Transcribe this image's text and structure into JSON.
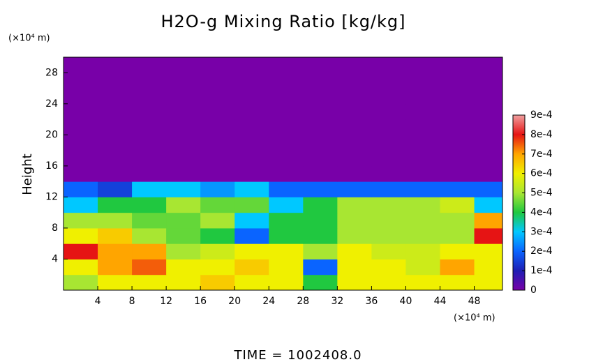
{
  "chart_data": {
    "type": "heatmap",
    "title": "H2O-g Mixing Ratio [kg/kg]",
    "ylabel": "Height",
    "y_unit": "(×10⁴ m)",
    "x_unit": "(×10⁴ m)",
    "footer": "TIME = 1002408.0",
    "xlim": [
      0,
      51.3
    ],
    "ylim": [
      0,
      30
    ],
    "xticks": [
      4,
      8,
      12,
      16,
      20,
      24,
      28,
      32,
      36,
      40,
      44,
      48
    ],
    "yticks": [
      4,
      8,
      12,
      16,
      20,
      24,
      28
    ],
    "x": [
      2,
      6,
      10,
      14,
      18,
      22,
      26,
      30,
      34,
      38,
      42,
      46,
      50
    ],
    "y": [
      1,
      3,
      5,
      7,
      9,
      11,
      13,
      15,
      17,
      19,
      21,
      23,
      25,
      27,
      29
    ],
    "z": [
      [
        0.0005,
        0.0006,
        0.0006,
        0.0006,
        0.00065,
        0.0006,
        0.0006,
        0.0004,
        0.0006,
        0.0006,
        0.0006,
        0.0006,
        0.0006
      ],
      [
        0.0006,
        0.0007,
        0.00075,
        0.0006,
        0.0006,
        0.00065,
        0.0006,
        0.0002,
        0.0006,
        0.0006,
        0.00055,
        0.0007,
        0.0006
      ],
      [
        0.0008,
        0.0007,
        0.0007,
        0.0005,
        0.00055,
        0.0006,
        0.0006,
        0.0005,
        0.0006,
        0.00055,
        0.00055,
        0.0006,
        0.0006
      ],
      [
        0.0006,
        0.00065,
        0.0005,
        0.00045,
        0.0004,
        0.0002,
        0.0004,
        0.0004,
        0.0005,
        0.0005,
        0.0005,
        0.0005,
        0.0008
      ],
      [
        0.0005,
        0.0005,
        0.00045,
        0.00045,
        0.0005,
        0.0003,
        0.0004,
        0.0004,
        0.0005,
        0.0005,
        0.0005,
        0.0005,
        0.0007
      ],
      [
        0.0003,
        0.0004,
        0.0004,
        0.0005,
        0.00045,
        0.00045,
        0.0003,
        0.0004,
        0.0005,
        0.0005,
        0.0005,
        0.00055,
        0.0003
      ],
      [
        0.0002,
        0.00015,
        0.0003,
        0.0003,
        0.00025,
        0.0003,
        0.0002,
        0.0002,
        0.0002,
        0.0002,
        0.0002,
        0.0002,
        0.0002
      ],
      [
        0,
        0,
        0,
        0,
        0,
        0,
        0,
        0,
        0,
        0,
        0,
        0,
        0
      ],
      [
        0,
        0,
        0,
        0,
        0,
        0,
        0,
        0,
        0,
        0,
        0,
        0,
        0
      ],
      [
        0,
        0,
        0,
        0,
        0,
        0,
        0,
        0,
        0,
        0,
        0,
        0,
        0
      ],
      [
        0,
        0,
        0,
        0,
        0,
        0,
        0,
        0,
        0,
        0,
        0,
        0,
        0
      ],
      [
        0,
        0,
        0,
        0,
        0,
        0,
        0,
        0,
        0,
        0,
        0,
        0,
        0
      ],
      [
        0,
        0,
        0,
        0,
        0,
        0,
        0,
        0,
        0,
        0,
        0,
        0,
        0
      ],
      [
        0,
        0,
        0,
        0,
        0,
        0,
        0,
        0,
        0,
        0,
        0,
        0,
        0
      ],
      [
        0,
        0,
        0,
        0,
        0,
        0,
        0,
        0,
        0,
        0,
        0,
        0,
        0
      ]
    ],
    "zlim": [
      0,
      0.0009
    ],
    "zticks": [
      0,
      {
        "value": 0.0001,
        "label": "1e-4"
      },
      {
        "value": 0.0002,
        "label": "2e-4"
      },
      {
        "value": 0.0003,
        "label": "3e-4"
      },
      {
        "value": 0.0004,
        "label": "4e-4"
      },
      {
        "value": 0.0005,
        "label": "5e-4"
      },
      {
        "value": 0.0006,
        "label": "6e-4"
      },
      {
        "value": 0.0007,
        "label": "7e-4"
      },
      {
        "value": 0.0008,
        "label": "8e-4"
      },
      {
        "value": 0.0009,
        "label": "9e-4"
      }
    ],
    "colors": [
      "#7800a8",
      "#1e1eb4",
      "#0a64ff",
      "#00c8ff",
      "#20c840",
      "#a8e632",
      "#f0f000",
      "#ffa500",
      "#e61414",
      "#f0a0a0"
    ]
  }
}
